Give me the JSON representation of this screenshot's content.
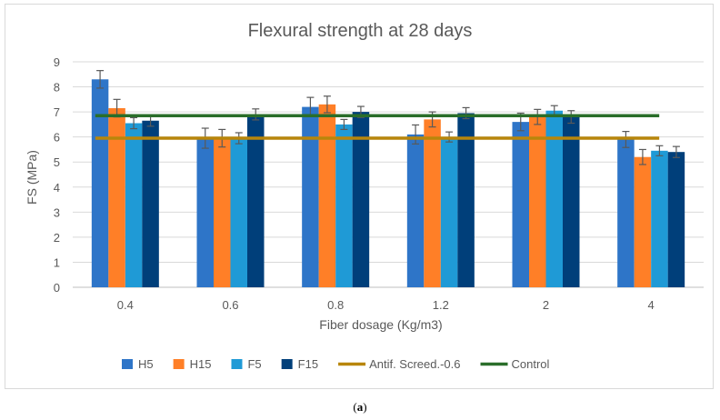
{
  "caption": {
    "open": "(",
    "label": "a",
    "close": ")"
  },
  "chart_data": {
    "type": "bar",
    "title": "Flexural strength at 28 days",
    "xlabel": "Fiber dosage (Kg/m3)",
    "ylabel": "FS (MPa)",
    "ylim": [
      0,
      9
    ],
    "yticks": [
      "0",
      "1",
      "2",
      "3",
      "4",
      "5",
      "6",
      "7",
      "8",
      "9"
    ],
    "grid": true,
    "legend_position": "bottom",
    "categories": [
      "0.4",
      "0.6",
      "0.8",
      "1.2",
      "2",
      "4"
    ],
    "series": [
      {
        "name": "H5",
        "color": "#2e75c8",
        "values": [
          8.3,
          5.95,
          7.2,
          6.1,
          6.6,
          5.9
        ],
        "errors": [
          0.35,
          0.4,
          0.38,
          0.38,
          0.35,
          0.32
        ]
      },
      {
        "name": "H15",
        "color": "#ff7f27",
        "values": [
          7.15,
          5.95,
          7.3,
          6.7,
          6.8,
          5.2
        ],
        "errors": [
          0.35,
          0.35,
          0.33,
          0.3,
          0.3,
          0.3
        ]
      },
      {
        "name": "F5",
        "color": "#1f9ad6",
        "values": [
          6.55,
          5.95,
          6.5,
          6.0,
          7.05,
          5.45
        ],
        "errors": [
          0.22,
          0.22,
          0.2,
          0.2,
          0.2,
          0.2
        ]
      },
      {
        "name": "F15",
        "color": "#003f7a",
        "values": [
          6.65,
          6.9,
          7.0,
          6.95,
          6.8,
          5.4
        ],
        "errors": [
          0.22,
          0.22,
          0.22,
          0.22,
          0.25,
          0.22
        ]
      }
    ],
    "reference_lines": [
      {
        "name": "Antif. Screed.-0.6",
        "color": "#b8860b",
        "value": 5.95
      },
      {
        "name": "Control",
        "color": "#2a6e2a",
        "value": 6.85
      }
    ]
  }
}
